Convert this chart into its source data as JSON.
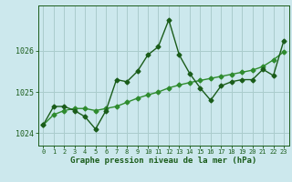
{
  "title": "Graphe pression niveau de la mer (hPa)",
  "background_color": "#cce8ed",
  "grid_color": "#aacccc",
  "line_color_dark": "#1a5c1a",
  "line_color_light": "#2e8b2e",
  "x_labels": [
    "0",
    "1",
    "2",
    "3",
    "4",
    "5",
    "6",
    "7",
    "8",
    "9",
    "10",
    "11",
    "12",
    "13",
    "14",
    "15",
    "16",
    "17",
    "18",
    "19",
    "20",
    "21",
    "22",
    "23"
  ],
  "x_values": [
    0,
    1,
    2,
    3,
    4,
    5,
    6,
    7,
    8,
    9,
    10,
    11,
    12,
    13,
    14,
    15,
    16,
    17,
    18,
    19,
    20,
    21,
    22,
    23
  ],
  "y_main": [
    1024.2,
    1024.65,
    1024.65,
    1024.55,
    1024.4,
    1024.1,
    1024.55,
    1025.3,
    1025.25,
    1025.5,
    1025.9,
    1026.1,
    1026.75,
    1025.9,
    1025.45,
    1025.1,
    1024.8,
    1025.15,
    1025.25,
    1025.3,
    1025.3,
    1025.55,
    1025.4,
    1026.25
  ],
  "y_smooth": [
    1024.2,
    1024.45,
    1024.55,
    1024.6,
    1024.6,
    1024.55,
    1024.6,
    1024.65,
    1024.75,
    1024.85,
    1024.93,
    1025.0,
    1025.1,
    1025.17,
    1025.23,
    1025.28,
    1025.33,
    1025.38,
    1025.43,
    1025.48,
    1025.53,
    1025.62,
    1025.78,
    1025.98
  ],
  "ylim_min": 1023.7,
  "ylim_max": 1027.1,
  "yticks": [
    1024,
    1025,
    1026
  ],
  "marker": "D",
  "marker_size": 2.5,
  "linewidth": 1.0
}
